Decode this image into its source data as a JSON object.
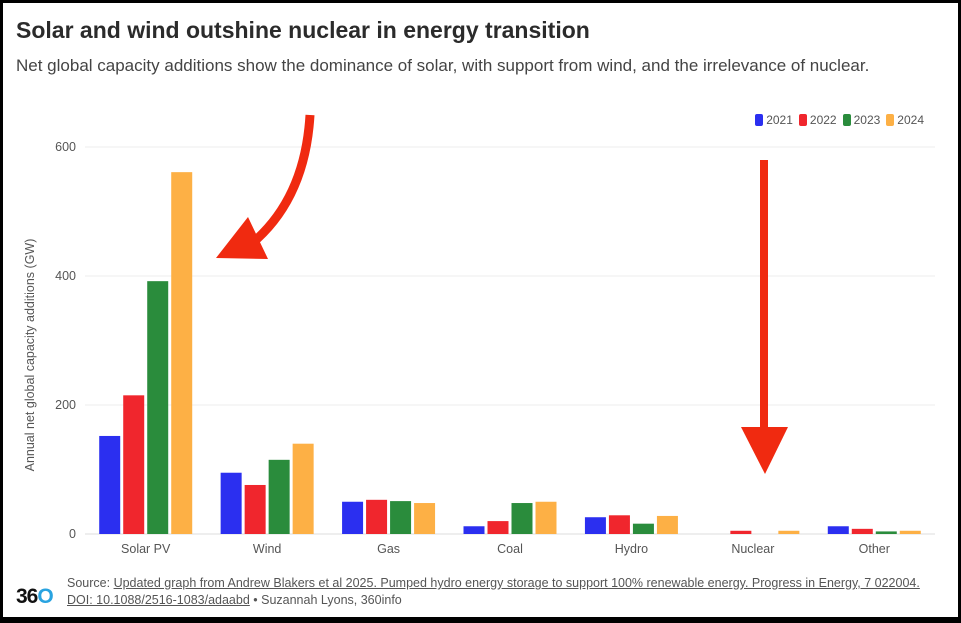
{
  "title": "Solar and wind outshine nuclear in energy transition",
  "subtitle": "Net global capacity additions show the dominance of solar, with support from wind, and the irrelevance of nuclear.",
  "footer": {
    "source_prefix": "Source: ",
    "source_link": "Updated graph from Andrew Blakers et al 2025. Pumped hydro energy storage to support 100% renewable energy. Progress in Energy, 7 022004. DOI: 10.1088/2516-1083/adaabd",
    "credit": " • Suzannah Lyons, 360info",
    "logo": "360"
  },
  "chart_data": {
    "type": "bar",
    "title": "Solar and wind outshine nuclear in energy transition",
    "xlabel": "",
    "ylabel": "Annual net global capacity additions (GW)",
    "ylim": [
      0,
      600
    ],
    "yticks": [
      0,
      200,
      400,
      600
    ],
    "grid": true,
    "legend_position": "top-right",
    "categories": [
      "Solar PV",
      "Wind",
      "Gas",
      "Coal",
      "Hydro",
      "Nuclear",
      "Other"
    ],
    "series": [
      {
        "name": "2021",
        "color": "#2b2ff0",
        "values": [
          152,
          95,
          50,
          12,
          26,
          0,
          12
        ]
      },
      {
        "name": "2022",
        "color": "#f0262d",
        "values": [
          215,
          76,
          53,
          20,
          29,
          5,
          8
        ]
      },
      {
        "name": "2023",
        "color": "#2a8c3c",
        "values": [
          392,
          115,
          51,
          48,
          16,
          0,
          4
        ]
      },
      {
        "name": "2024",
        "color": "#fdb045",
        "values": [
          561,
          140,
          48,
          50,
          28,
          5,
          5
        ]
      }
    ],
    "annotations": [
      {
        "type": "arrow",
        "color": "#f02a10",
        "points_to": "Solar PV"
      },
      {
        "type": "arrow",
        "color": "#f02a10",
        "points_to": "Nuclear"
      }
    ]
  }
}
